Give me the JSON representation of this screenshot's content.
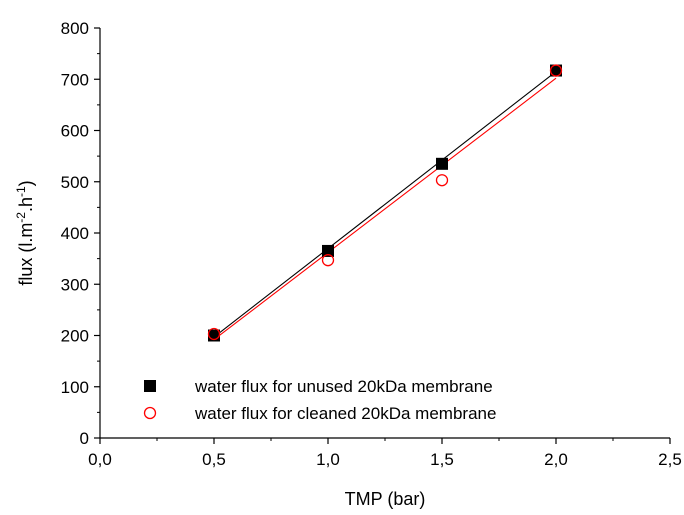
{
  "chart_data": {
    "type": "scatter",
    "xlabel": "TMP (bar)",
    "ylabel": {
      "parts": [
        {
          "text": "flux (l.m",
          "sup": false
        },
        {
          "text": "-2",
          "sup": true
        },
        {
          "text": ".h",
          "sup": false
        },
        {
          "text": "-1",
          "sup": true
        },
        {
          "text": ")",
          "sup": false
        }
      ]
    },
    "xlim": [
      0.0,
      2.5
    ],
    "ylim": [
      0,
      800
    ],
    "x_ticks": [
      0.0,
      0.5,
      1.0,
      1.5,
      2.0,
      2.5
    ],
    "x_tick_labels": [
      "0,0",
      "0,5",
      "1,0",
      "1,5",
      "2,0",
      "2,5"
    ],
    "y_ticks": [
      0,
      100,
      200,
      300,
      400,
      500,
      600,
      700,
      800
    ],
    "y_tick_labels": [
      "0",
      "100",
      "200",
      "300",
      "400",
      "500",
      "600",
      "700",
      "800"
    ],
    "grid": false,
    "legend_position": "bottom-left",
    "series": [
      {
        "name": "water flux for unused 20kDa membrane",
        "marker": "filled-square",
        "color": "#000000",
        "x": [
          0.5,
          1.0,
          1.5,
          2.0
        ],
        "y": [
          200,
          365,
          535,
          717
        ],
        "fit_line": {
          "x": [
            0.5,
            2.0
          ],
          "y": [
            197,
            715
          ]
        }
      },
      {
        "name": "water flux for cleaned 20kDa membrane",
        "marker": "open-circle",
        "color": "#ff0000",
        "x": [
          0.5,
          1.0,
          1.5,
          2.0
        ],
        "y": [
          203,
          347,
          503,
          717
        ],
        "fit_line": {
          "x": [
            0.5,
            2.0
          ],
          "y": [
            192,
            702
          ]
        }
      }
    ]
  }
}
